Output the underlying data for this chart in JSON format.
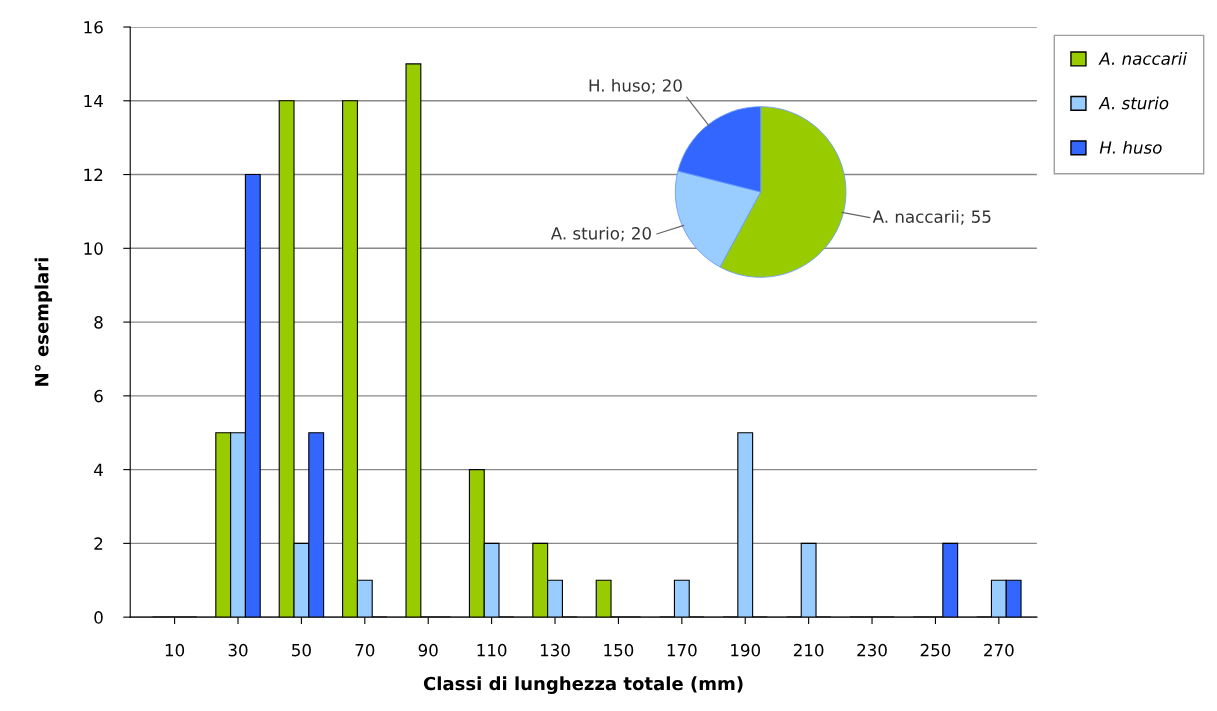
{
  "chart_data": [
    {
      "type": "bar",
      "xlabel": "Classi di lunghezza totale (mm)",
      "ylabel": "N° esemplari",
      "categories": [
        "10",
        "30",
        "50",
        "70",
        "90",
        "110",
        "130",
        "150",
        "170",
        "190",
        "210",
        "230",
        "250",
        "270"
      ],
      "series": [
        {
          "name": "A. naccarii",
          "color": "#99cc00",
          "values": [
            0,
            5,
            14,
            14,
            15,
            4,
            2,
            1,
            0,
            0,
            0,
            0,
            0,
            0
          ]
        },
        {
          "name": "A. sturio",
          "color": "#99ccff",
          "values": [
            0,
            5,
            2,
            1,
            0,
            2,
            1,
            0,
            1,
            5,
            2,
            0,
            0,
            1
          ]
        },
        {
          "name": "H. huso",
          "color": "#3366ff",
          "values": [
            0,
            12,
            5,
            0,
            0,
            0,
            0,
            0,
            0,
            0,
            0,
            0,
            2,
            1
          ]
        }
      ],
      "ylim": [
        0,
        16
      ],
      "yticks": [
        0,
        2,
        4,
        6,
        8,
        10,
        12,
        14,
        16
      ],
      "grid": "y",
      "legend": "right"
    },
    {
      "type": "pie",
      "categories": [
        "A. naccarii",
        "A. sturio",
        "H. huso"
      ],
      "values": [
        55,
        20,
        20
      ],
      "colors": [
        "#99cc00",
        "#99ccff",
        "#3366ff"
      ],
      "value_labels": [
        "; 55",
        "; 20",
        "; 20"
      ]
    }
  ]
}
